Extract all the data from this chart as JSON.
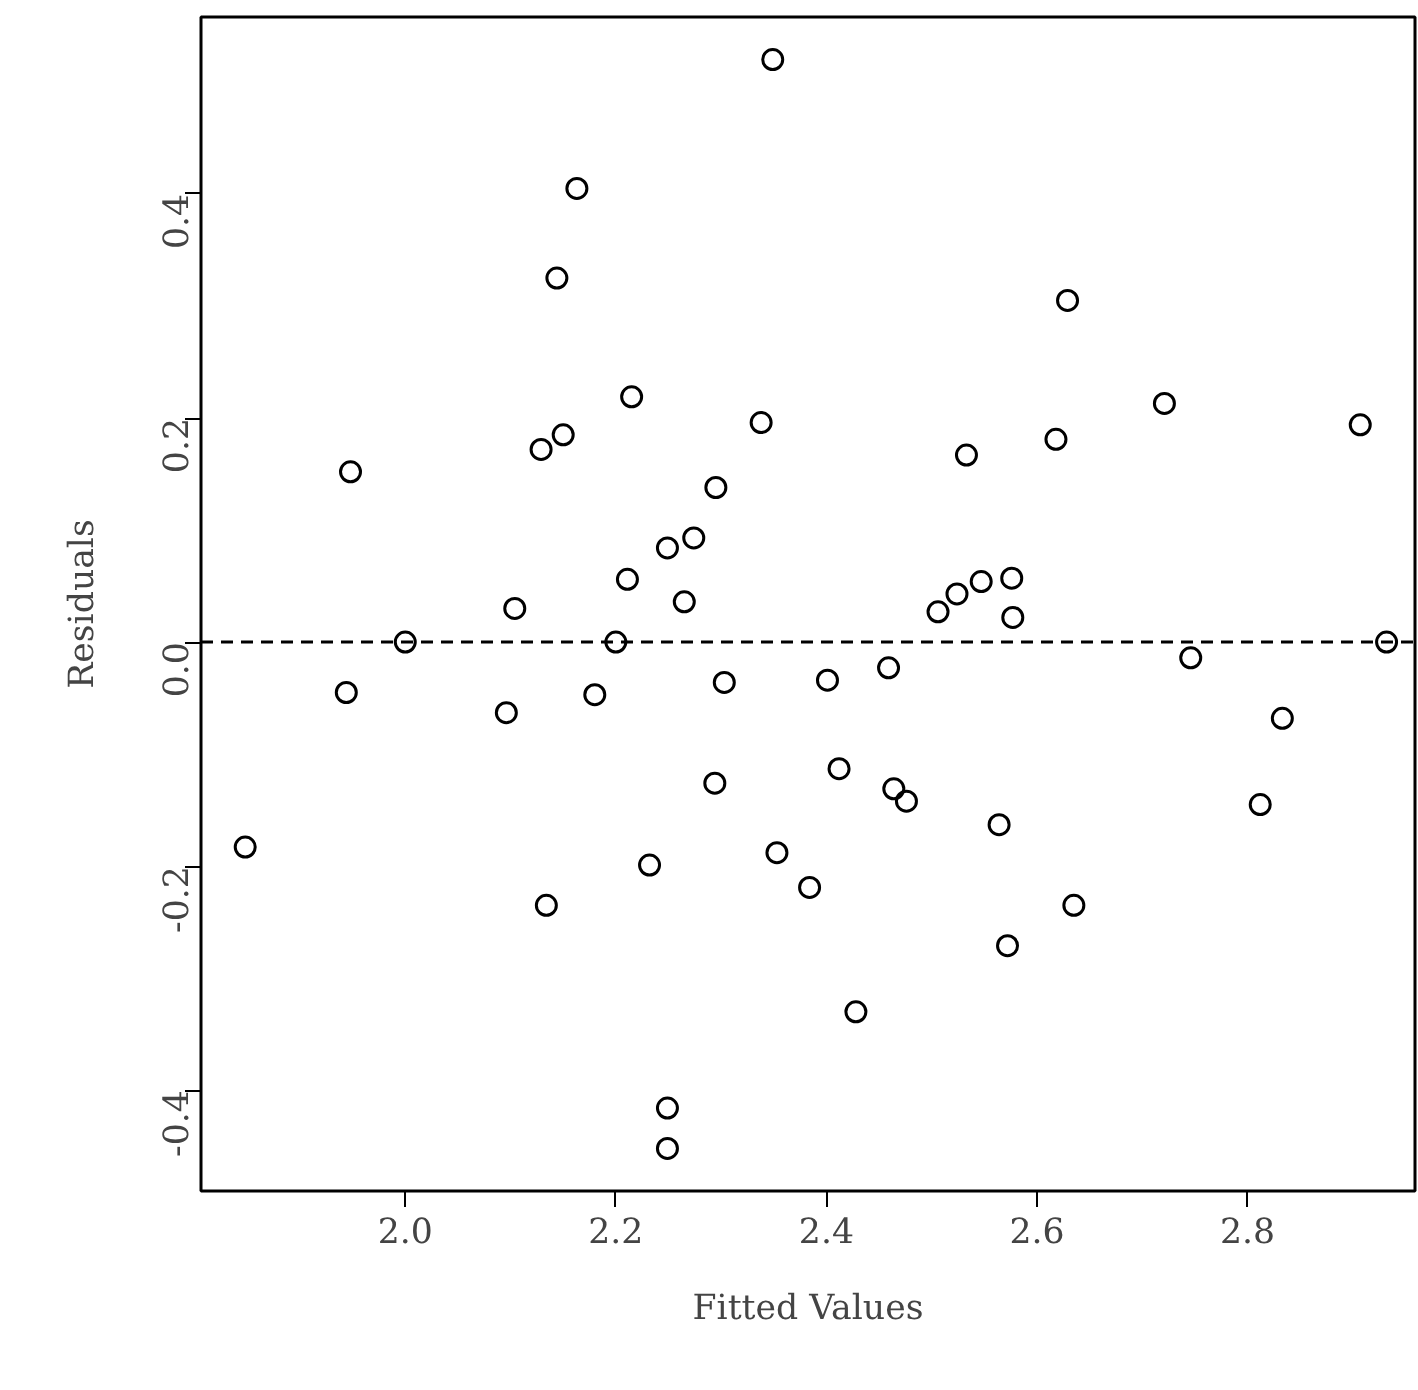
{
  "chart_data": {
    "type": "scatter",
    "xlabel": "Fitted Values",
    "ylabel": "Residuals",
    "marker": "circle",
    "grid": false,
    "xlim": [
      1.806,
      2.959
    ],
    "ylim": [
      -0.49,
      0.558
    ],
    "xticks": [
      {
        "value": 2.0,
        "label": "2.0"
      },
      {
        "value": 2.2,
        "label": "2.2"
      },
      {
        "value": 2.4,
        "label": "2.4"
      },
      {
        "value": 2.6,
        "label": "2.6"
      },
      {
        "value": 2.8,
        "label": "2.8"
      }
    ],
    "yticks": [
      {
        "value": -0.4,
        "label": "-0.4"
      },
      {
        "value": -0.2,
        "label": "-0.2"
      },
      {
        "value": 0.0,
        "label": "0.0"
      },
      {
        "value": 0.2,
        "label": "0.2"
      },
      {
        "value": 0.4,
        "label": "0.4"
      }
    ],
    "ref_lines": [
      {
        "axis": "y",
        "value": 0,
        "label": null,
        "color": "#000000",
        "line_style": "dashed"
      }
    ],
    "series": [
      {
        "color": "#000000",
        "x": [
          1.848,
          1.948,
          1.944,
          2.0,
          2.104,
          2.096,
          2.129,
          2.144,
          2.15,
          2.163,
          2.134,
          2.18,
          2.2,
          2.211,
          2.215,
          2.232,
          2.249,
          2.249,
          2.249,
          2.265,
          2.274,
          2.295,
          2.294,
          2.303,
          2.338,
          2.349,
          2.353,
          2.384,
          2.401,
          2.412,
          2.428,
          2.459,
          2.464,
          2.476,
          2.506,
          2.524,
          2.533,
          2.547,
          2.564,
          2.572,
          2.576,
          2.577,
          2.618,
          2.629,
          2.635,
          2.721,
          2.746,
          2.812,
          2.833,
          2.907,
          2.932
        ],
        "values": [
          -0.183,
          0.152,
          -0.045,
          0.0,
          0.03,
          -0.063,
          0.172,
          0.325,
          0.185,
          0.405,
          -0.235,
          -0.047,
          0.0,
          0.056,
          0.219,
          -0.199,
          0.084,
          -0.416,
          -0.452,
          0.036,
          0.093,
          0.138,
          -0.126,
          -0.036,
          0.196,
          0.52,
          -0.188,
          -0.219,
          -0.034,
          -0.113,
          -0.33,
          -0.023,
          -0.131,
          -0.142,
          0.027,
          0.043,
          0.167,
          0.054,
          -0.163,
          -0.271,
          0.057,
          0.022,
          0.181,
          0.305,
          -0.235,
          0.213,
          -0.014,
          -0.145,
          -0.068,
          0.194,
          0.0
        ]
      }
    ]
  }
}
